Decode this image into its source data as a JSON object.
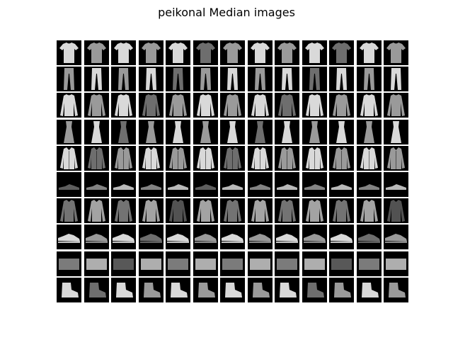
{
  "figure": {
    "title": "peikonal Median images"
  },
  "grid": {
    "rows": 10,
    "cols": 13,
    "row_items": [
      "tshirt-top",
      "trouser",
      "pullover",
      "dress",
      "coat",
      "sandal",
      "shirt",
      "sneaker",
      "bag",
      "ankle-boot"
    ]
  },
  "colors": {
    "background": "#000000",
    "garment_light": "#d9d9d9",
    "garment_mid": "#9a9a9a",
    "garment_dark": "#6e6e6e"
  }
}
